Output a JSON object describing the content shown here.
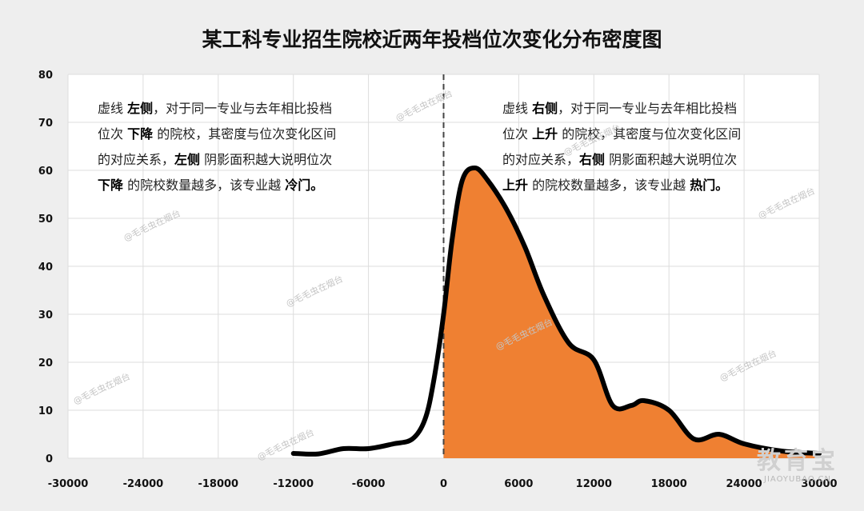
{
  "chart_data": {
    "type": "area",
    "title": "某工科专业招生院校近两年投档位次变化分布密度图",
    "xlabel": "",
    "ylabel": "",
    "xlim": [
      -30000,
      30000
    ],
    "ylim": [
      0,
      80
    ],
    "x_ticks": [
      "-30000",
      "-24000",
      "-18000",
      "-12000",
      "-6000",
      "0",
      "6000",
      "12000",
      "18000",
      "24000",
      "30000"
    ],
    "y_ticks": [
      "0",
      "10",
      "20",
      "30",
      "40",
      "50",
      "60",
      "70",
      "80"
    ],
    "grid": true,
    "reference_line_x": 0,
    "fill_color": "#ef8032",
    "line_color": "#000000",
    "points": [
      [
        -12000,
        1
      ],
      [
        -10000,
        0.9
      ],
      [
        -8000,
        2
      ],
      [
        -6000,
        2
      ],
      [
        -4000,
        3
      ],
      [
        -2500,
        4
      ],
      [
        -1500,
        8
      ],
      [
        -800,
        16
      ],
      [
        0,
        30
      ],
      [
        700,
        46
      ],
      [
        1500,
        58
      ],
      [
        2500,
        60.5
      ],
      [
        3500,
        58
      ],
      [
        5000,
        52
      ],
      [
        6500,
        44
      ],
      [
        8000,
        34
      ],
      [
        10000,
        24
      ],
      [
        12000,
        20.5
      ],
      [
        13500,
        11
      ],
      [
        15000,
        11
      ],
      [
        16000,
        12
      ],
      [
        18000,
        10
      ],
      [
        20000,
        4
      ],
      [
        22000,
        5
      ],
      [
        24000,
        3
      ],
      [
        27000,
        1.5
      ],
      [
        30000,
        1
      ]
    ]
  },
  "annotations": {
    "left": {
      "line1a": "虚线 ",
      "line1b": "左侧",
      "line1c": "，对于同一专业与去年相比投档",
      "line2a": "位次 ",
      "line2b": "下降",
      "line2c": " 的院校，其密度与位次变化区间",
      "line3a": "的对应关系，",
      "line3b": "左侧",
      "line3c": " 阴影面积越大说明位次",
      "line4a": "下降",
      "line4b": " 的院校数量越多，该专业越 ",
      "line4c": "冷门。"
    },
    "right": {
      "line1a": "虚线 ",
      "line1b": "右侧",
      "line1c": "，对于同一专业与去年相比投档",
      "line2a": "位次 ",
      "line2b": "上升",
      "line2c": " 的院校，其密度与位次变化区间",
      "line3a": "的对应关系，",
      "line3b": "右侧",
      "line3c": " 阴影面积越大说明位次",
      "line4a": "上升",
      "line4b": " 的院校数量越多，该专业越 ",
      "line4c": "热门。"
    }
  },
  "watermark_text": "@毛毛虫在烟台",
  "logo": {
    "main": "教育宝",
    "sub": "JIAOYUBAO.CN"
  }
}
